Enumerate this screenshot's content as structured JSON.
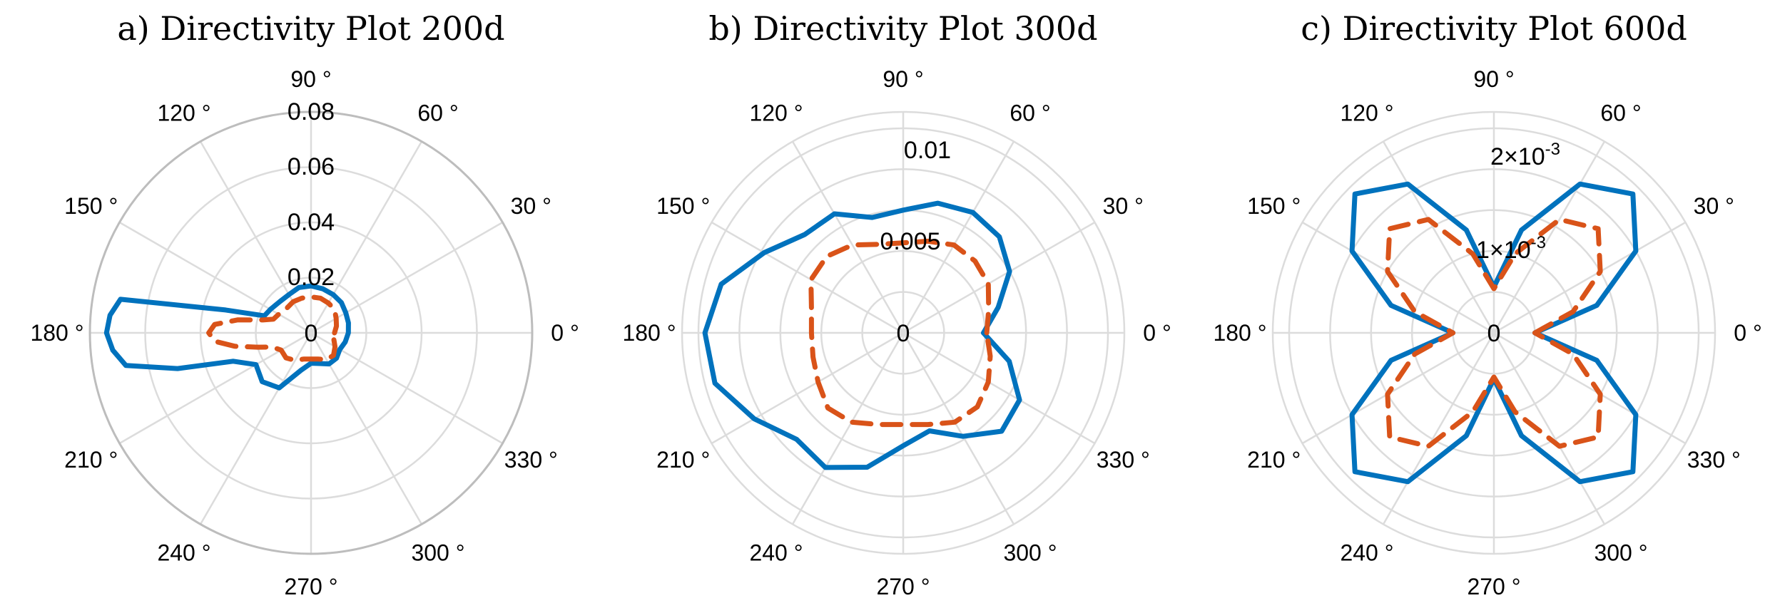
{
  "colors": {
    "series1": "#0072BD",
    "series2": "#D95319"
  },
  "chart_data": [
    {
      "type": "polar-line",
      "title": "a) Directivity Plot 200d",
      "theta_labels": [
        "0 °",
        "30 °",
        "60 °",
        "90 °",
        "120 °",
        "150 °",
        "180 °",
        "210 °",
        "240 °",
        "270 °",
        "300 °",
        "330 °"
      ],
      "r_ticks": [
        0,
        0.02,
        0.04,
        0.06,
        0.08
      ],
      "r_tick_labels": [
        "0",
        "0.02",
        "0.04",
        "0.06",
        "0.08"
      ],
      "rlim": [
        0,
        0.08
      ],
      "grid": true,
      "theta_deg": [
        0,
        15,
        30,
        45,
        60,
        75,
        90,
        105,
        120,
        135,
        150,
        160,
        165,
        170,
        175,
        180,
        185,
        190,
        195,
        200,
        210,
        225,
        240,
        255,
        270,
        285,
        300,
        315,
        330,
        345
      ],
      "series": [
        {
          "style": "solid",
          "values": [
            0.0135,
            0.014,
            0.0145,
            0.0155,
            0.016,
            0.0165,
            0.017,
            0.017,
            0.016,
            0.016,
            0.017,
            0.018,
            0.032,
            0.07,
            0.073,
            0.074,
            0.072,
            0.068,
            0.05,
            0.03,
            0.023,
            0.025,
            0.023,
            0.014,
            0.011,
            0.0115,
            0.013,
            0.013,
            0.012,
            0.0128
          ]
        },
        {
          "style": "dashed",
          "values": [
            0.0085,
            0.0095,
            0.0105,
            0.012,
            0.0125,
            0.013,
            0.013,
            0.013,
            0.013,
            0.0125,
            0.0135,
            0.0145,
            0.018,
            0.027,
            0.035,
            0.037,
            0.035,
            0.028,
            0.02,
            0.015,
            0.0125,
            0.0128,
            0.0115,
            0.0098,
            0.0095,
            0.0098,
            0.0112,
            0.0115,
            0.01,
            0.0085
          ]
        }
      ]
    },
    {
      "type": "polar-line",
      "title": "b) Directivity Plot 300d",
      "theta_labels": [
        "0 °",
        "30 °",
        "60 °",
        "90 °",
        "120 °",
        "150 °",
        "180 °",
        "210 °",
        "240 °",
        "270 °",
        "300 °",
        "330 °"
      ],
      "r_ticks": [
        0,
        0.005,
        0.01
      ],
      "r_tick_labels": [
        "0",
        "0.005",
        "0.01"
      ],
      "rlim": [
        0,
        0.0135
      ],
      "grid": true,
      "theta_deg": [
        0,
        15,
        30,
        45,
        60,
        75,
        90,
        105,
        120,
        135,
        150,
        165,
        180,
        195,
        210,
        225,
        240,
        255,
        270,
        285,
        300,
        315,
        330,
        345
      ],
      "series": [
        {
          "style": "solid",
          "values": [
            0.0049,
            0.006,
            0.0075,
            0.0083,
            0.0085,
            0.0082,
            0.0075,
            0.0073,
            0.0084,
            0.0085,
            0.0098,
            0.0115,
            0.0121,
            0.0119,
            0.0105,
            0.0092,
            0.0095,
            0.0085,
            0.0069,
            0.0062,
            0.0073,
            0.0085,
            0.0082,
            0.0067
          ]
        },
        {
          "style": "dashed",
          "values": [
            0.0051,
            0.0054,
            0.006,
            0.0062,
            0.0062,
            0.0058,
            0.0055,
            0.0056,
            0.0062,
            0.0066,
            0.0065,
            0.0058,
            0.0056,
            0.0057,
            0.006,
            0.0065,
            0.0063,
            0.0058,
            0.0056,
            0.0058,
            0.0063,
            0.0064,
            0.006,
            0.0055
          ]
        }
      ]
    },
    {
      "type": "polar-line",
      "title": "c) Directivity Plot 600d",
      "theta_labels": [
        "0 °",
        "30 °",
        "60 °",
        "90 °",
        "120 °",
        "150 °",
        "180 °",
        "210 °",
        "240 °",
        "270 °",
        "300 °",
        "330 °"
      ],
      "r_ticks": [
        0,
        0.001,
        0.002
      ],
      "r_tick_labels": [
        "0",
        "1×10",
        "2×10"
      ],
      "r_tick_exponents": [
        "",
        "-3",
        "-3"
      ],
      "rlim": [
        0,
        0.0027
      ],
      "grid": true,
      "theta_deg": [
        0,
        15,
        30,
        45,
        60,
        75,
        90,
        105,
        120,
        135,
        150,
        165,
        180,
        195,
        210,
        225,
        240,
        255,
        270,
        285,
        300,
        315,
        330,
        345
      ],
      "series": [
        {
          "style": "solid",
          "values": [
            0.0005,
            0.0013,
            0.002,
            0.0024,
            0.0021,
            0.0013,
            0.00056,
            0.0013,
            0.0021,
            0.0024,
            0.002,
            0.0013,
            0.0005,
            0.0013,
            0.002,
            0.0024,
            0.0021,
            0.0013,
            0.00056,
            0.0013,
            0.0021,
            0.0024,
            0.002,
            0.0013
          ]
        },
        {
          "style": "dashed",
          "values": [
            0.0005,
            0.001,
            0.0015,
            0.0018,
            0.0016,
            0.001,
            0.00054,
            0.001,
            0.0016,
            0.0018,
            0.0015,
            0.001,
            0.0005,
            0.001,
            0.0015,
            0.0018,
            0.0016,
            0.001,
            0.00054,
            0.001,
            0.0016,
            0.0018,
            0.0015,
            0.001
          ]
        }
      ]
    }
  ]
}
